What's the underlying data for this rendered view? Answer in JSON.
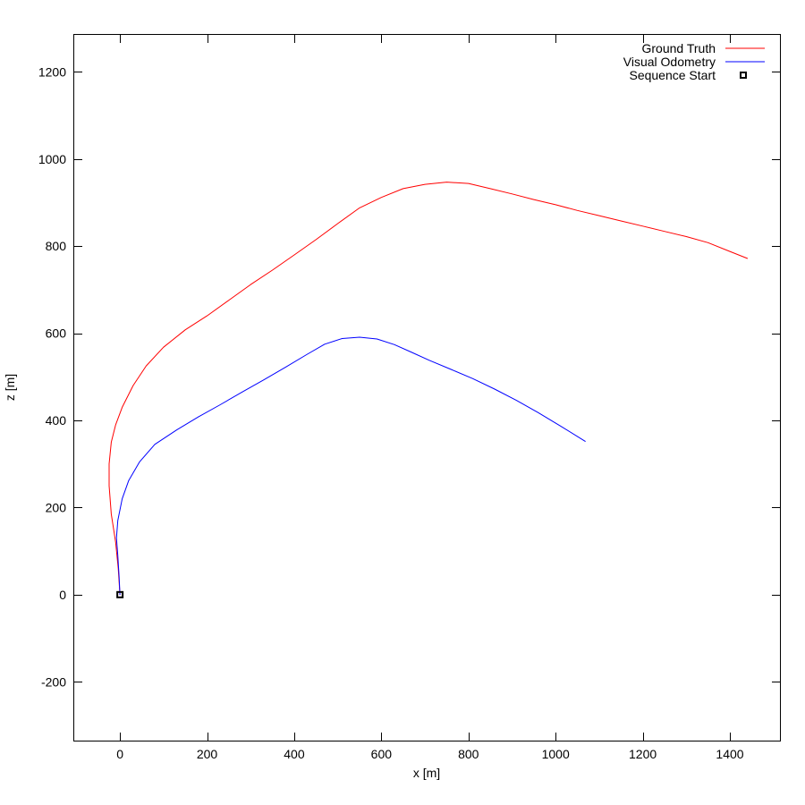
{
  "chart_data": {
    "type": "line",
    "xlabel": "x [m]",
    "ylabel": "z [m]",
    "xlim": [
      -105,
      1515
    ],
    "ylim": [
      -335,
      1285
    ],
    "xticks": [
      0,
      200,
      400,
      600,
      800,
      1000,
      1200,
      1400
    ],
    "yticks": [
      -200,
      0,
      200,
      400,
      600,
      800,
      1000,
      1200
    ],
    "grid": false,
    "legend_position": "top-right",
    "series": [
      {
        "name": "Ground Truth",
        "color": "#ff0000",
        "points": [
          [
            0,
            0
          ],
          [
            -4,
            60
          ],
          [
            -10,
            120
          ],
          [
            -20,
            185
          ],
          [
            -25,
            250
          ],
          [
            -25,
            300
          ],
          [
            -20,
            350
          ],
          [
            -10,
            390
          ],
          [
            5,
            430
          ],
          [
            30,
            480
          ],
          [
            60,
            525
          ],
          [
            100,
            568
          ],
          [
            150,
            608
          ],
          [
            200,
            640
          ],
          [
            250,
            676
          ],
          [
            300,
            712
          ],
          [
            350,
            745
          ],
          [
            400,
            780
          ],
          [
            450,
            815
          ],
          [
            500,
            852
          ],
          [
            550,
            888
          ],
          [
            600,
            912
          ],
          [
            650,
            932
          ],
          [
            700,
            942
          ],
          [
            750,
            947
          ],
          [
            800,
            944
          ],
          [
            850,
            932
          ],
          [
            900,
            920
          ],
          [
            950,
            907
          ],
          [
            1000,
            895
          ],
          [
            1050,
            882
          ],
          [
            1100,
            870
          ],
          [
            1150,
            858
          ],
          [
            1200,
            846
          ],
          [
            1250,
            834
          ],
          [
            1300,
            822
          ],
          [
            1350,
            808
          ],
          [
            1400,
            788
          ],
          [
            1440,
            772
          ]
        ]
      },
      {
        "name": "Visual Odometry",
        "color": "#0000ff",
        "points": [
          [
            0,
            0
          ],
          [
            -2,
            40
          ],
          [
            -5,
            90
          ],
          [
            -8,
            130
          ],
          [
            -5,
            170
          ],
          [
            5,
            220
          ],
          [
            20,
            262
          ],
          [
            45,
            305
          ],
          [
            80,
            345
          ],
          [
            130,
            378
          ],
          [
            180,
            408
          ],
          [
            230,
            436
          ],
          [
            280,
            465
          ],
          [
            330,
            493
          ],
          [
            380,
            522
          ],
          [
            430,
            552
          ],
          [
            470,
            575
          ],
          [
            510,
            588
          ],
          [
            550,
            591
          ],
          [
            590,
            587
          ],
          [
            630,
            574
          ],
          [
            670,
            556
          ],
          [
            710,
            538
          ],
          [
            760,
            517
          ],
          [
            810,
            496
          ],
          [
            860,
            472
          ],
          [
            910,
            446
          ],
          [
            960,
            418
          ],
          [
            1010,
            388
          ],
          [
            1068,
            352
          ]
        ]
      }
    ],
    "markers": [
      {
        "name": "Sequence Start",
        "x": 0,
        "y": 0,
        "shape": "square"
      }
    ]
  }
}
